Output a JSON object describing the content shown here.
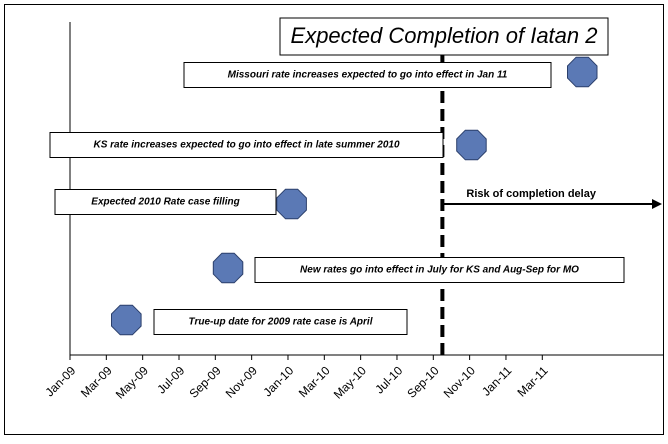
{
  "chart_data": {
    "type": "timeline",
    "title": "Expected Completion of Iatan 2",
    "completion": 20.5,
    "risk_label": "Risk of completion delay",
    "xlim": [
      0,
      32.7
    ],
    "xticks": [
      {
        "value": 0,
        "label": "Jan-09"
      },
      {
        "value": 2,
        "label": "Mar-09"
      },
      {
        "value": 4,
        "label": "May-09"
      },
      {
        "value": 6,
        "label": "Jul-09"
      },
      {
        "value": 8,
        "label": "Sep-09"
      },
      {
        "value": 10,
        "label": "Nov-09"
      },
      {
        "value": 12,
        "label": "Jan-10"
      },
      {
        "value": 14,
        "label": "Mar-10"
      },
      {
        "value": 16,
        "label": "May-10"
      },
      {
        "value": 18,
        "label": "Jul-10"
      },
      {
        "value": 20,
        "label": "Sep-10"
      },
      {
        "value": 22,
        "label": "Nov-10"
      },
      {
        "value": 24,
        "label": "Jan-11"
      },
      {
        "value": 26,
        "label": "Mar-11"
      }
    ],
    "color": "#5b79b5",
    "events": [
      {
        "label": "Missouri rate increases expected to go into effect in Jan 11",
        "x": 28.2
      },
      {
        "label": "KS rate increases expected to go into effect in late summer 2010",
        "x": 22.1
      },
      {
        "label": "Expected 2010 Rate case filling",
        "x": 12.2
      },
      {
        "label": "New rates go into effect in July for KS and Aug-Sep for MO",
        "x": 8.7
      },
      {
        "label": "True-up date for 2009 rate case is April",
        "x": 3.1
      }
    ]
  }
}
